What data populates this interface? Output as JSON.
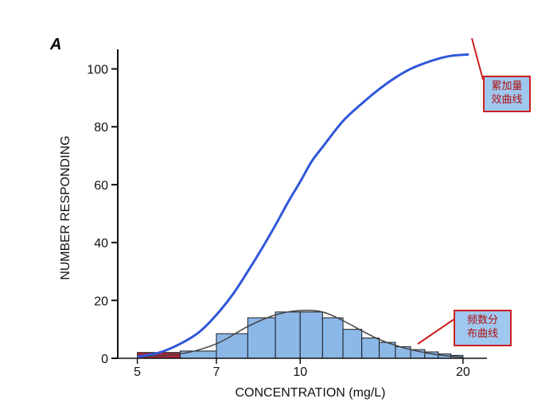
{
  "panel_label": "A",
  "callouts": {
    "cumulative": "累加量效曲线",
    "cumulative_lines": [
      "累加量",
      "效曲线"
    ],
    "frequency": "频数分布曲线",
    "frequency_lines": [
      "频数分",
      "布曲线"
    ]
  },
  "colors": {
    "bar_fill": "#8cb8e8",
    "bar_stroke": "#1a1a1a",
    "first_bar_fill": "#b0203a",
    "cumulative_curve": "#3057d9",
    "frequency_curve": "#444444",
    "callout_border": "#cc1f1f",
    "callout_fill": "#9fc8f0",
    "callout_text": "#b01010"
  },
  "chart_data": {
    "type": "bar",
    "xlabel": "CONCENTRATION (mg/L)",
    "ylabel": "NUMBER RESPONDING",
    "x_scale": "log",
    "xlim": [
      4.6,
      22
    ],
    "ylim": [
      0,
      104
    ],
    "x_ticks": [
      5,
      7,
      10,
      20
    ],
    "y_ticks": [
      0,
      20,
      40,
      60,
      80,
      100
    ],
    "grid": false,
    "histogram": {
      "name": "频数分布",
      "bins": [
        {
          "x0": 5.0,
          "x1": 6.0,
          "value": 2
        },
        {
          "x0": 6.0,
          "x1": 7.0,
          "value": 2.5
        },
        {
          "x0": 7.0,
          "x1": 8.0,
          "value": 8.5
        },
        {
          "x0": 8.0,
          "x1": 9.0,
          "value": 14
        },
        {
          "x0": 9.0,
          "x1": 10.0,
          "value": 16
        },
        {
          "x0": 10.0,
          "x1": 11.0,
          "value": 16
        },
        {
          "x0": 11.0,
          "x1": 12.0,
          "value": 14
        },
        {
          "x0": 12.0,
          "x1": 13.0,
          "value": 10
        },
        {
          "x0": 13.0,
          "x1": 14.0,
          "value": 7
        },
        {
          "x0": 14.0,
          "x1": 15.0,
          "value": 5.5
        },
        {
          "x0": 15.0,
          "x1": 16.0,
          "value": 4
        },
        {
          "x0": 16.0,
          "x1": 17.0,
          "value": 3
        },
        {
          "x0": 17.0,
          "x1": 18.0,
          "value": 2.2
        },
        {
          "x0": 18.0,
          "x1": 19.0,
          "value": 1.5
        },
        {
          "x0": 19.0,
          "x1": 20.0,
          "value": 1
        }
      ]
    },
    "series": [
      {
        "name": "累加量效曲线",
        "type": "line",
        "x": [
          5.0,
          5.5,
          6.0,
          6.5,
          7.0,
          7.5,
          8.0,
          8.5,
          9.0,
          9.5,
          10.0,
          10.5,
          11.0,
          12.0,
          13.0,
          14.0,
          15.0,
          16.0,
          17.0,
          18.0,
          19.0,
          20.5
        ],
        "y": [
          0.5,
          2,
          5,
          9,
          15,
          22,
          30,
          38,
          46,
          54,
          61,
          68,
          73,
          82,
          88,
          93,
          97,
          100,
          102,
          103.5,
          104.5,
          105
        ]
      },
      {
        "name": "频数分布曲线",
        "type": "line",
        "x": [
          5.0,
          6.0,
          7.0,
          8.0,
          9.0,
          10.0,
          11.0,
          12.0,
          13.0,
          14.0,
          15.0,
          16.0,
          17.0,
          18.0,
          19.0,
          20.0
        ],
        "y": [
          0.5,
          1.5,
          5,
          11,
          15,
          16.5,
          16,
          13,
          9.5,
          6.5,
          4.5,
          3,
          2,
          1.2,
          0.7,
          0.4
        ]
      }
    ]
  }
}
